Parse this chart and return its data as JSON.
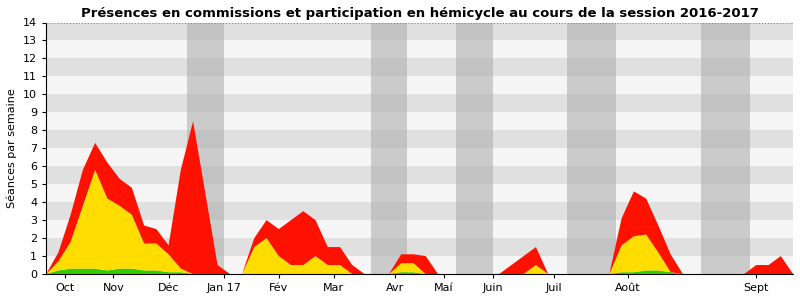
{
  "title": "Présences en commissions et participation en hémicycle au cours de la session 2016-2017",
  "ylabel": "Séances par semaine",
  "ylim": [
    0,
    14
  ],
  "yticks": [
    0,
    1,
    2,
    3,
    4,
    5,
    6,
    7,
    8,
    9,
    10,
    11,
    12,
    13,
    14
  ],
  "stripe_colors": [
    "#f5f5f5",
    "#e0e0e0"
  ],
  "gray_band_color": "#aaaaaa",
  "gray_band_alpha": 0.55,
  "color_green": "#33cc00",
  "color_yellow": "#ffdd00",
  "color_red": "#ff1100",
  "x_labels": [
    "Oct",
    "Nov",
    "Déc",
    "Jan 17",
    "Fév",
    "Mar",
    "Avr",
    "Maí",
    "Juin",
    "Juil",
    "Août",
    "Sept"
  ],
  "gray_bands": [
    {
      "xmin": 11.5,
      "xmax": 14.5
    },
    {
      "xmin": 26.5,
      "xmax": 29.5
    },
    {
      "xmin": 33.5,
      "xmax": 36.5
    },
    {
      "xmin": 42.5,
      "xmax": 46.5
    },
    {
      "xmin": 53.5,
      "xmax": 57.5
    }
  ],
  "month_tick_positions": [
    1.5,
    5.5,
    10.0,
    14.5,
    19.0,
    23.5,
    28.5,
    32.5,
    36.5,
    41.5,
    47.5,
    58.0
  ],
  "n_weeks": 62,
  "green_data": [
    0.0,
    0.2,
    0.3,
    0.3,
    0.3,
    0.2,
    0.3,
    0.3,
    0.2,
    0.2,
    0.1,
    0.1,
    0.0,
    0.0,
    0.0,
    0.0,
    0.0,
    0.0,
    0.0,
    0.0,
    0.0,
    0.0,
    0.0,
    0.0,
    0.0,
    0.0,
    0.0,
    0.0,
    0.0,
    0.1,
    0.1,
    0.0,
    0.0,
    0.0,
    0.0,
    0.0,
    0.0,
    0.0,
    0.0,
    0.0,
    0.0,
    0.0,
    0.0,
    0.0,
    0.0,
    0.0,
    0.0,
    0.1,
    0.1,
    0.2,
    0.2,
    0.1,
    0.0,
    0.0,
    0.0,
    0.0,
    0.0,
    0.0,
    0.0,
    0.0,
    0.0,
    0.0
  ],
  "yellow_data": [
    0.0,
    0.5,
    1.5,
    3.5,
    5.5,
    4.0,
    3.5,
    3.0,
    1.5,
    1.5,
    1.0,
    0.2,
    0.0,
    0.0,
    0.0,
    0.0,
    0.0,
    1.5,
    2.0,
    1.0,
    0.5,
    0.5,
    1.0,
    0.5,
    0.5,
    0.0,
    0.0,
    0.0,
    0.0,
    0.5,
    0.5,
    0.0,
    0.0,
    0.0,
    0.0,
    0.0,
    0.0,
    0.0,
    0.0,
    0.0,
    0.5,
    0.0,
    0.0,
    0.0,
    0.0,
    0.0,
    0.0,
    1.5,
    2.0,
    2.0,
    1.0,
    0.0,
    0.0,
    0.0,
    0.0,
    0.0,
    0.0,
    0.0,
    0.0,
    0.0,
    0.0,
    0.0
  ],
  "red_data": [
    0.0,
    0.5,
    1.5,
    2.0,
    1.5,
    2.0,
    1.5,
    1.5,
    1.0,
    0.8,
    0.5,
    5.5,
    8.5,
    4.5,
    0.5,
    0.0,
    0.0,
    0.5,
    1.0,
    1.5,
    2.5,
    3.0,
    2.0,
    1.0,
    1.0,
    0.5,
    0.0,
    0.0,
    0.0,
    0.5,
    0.5,
    1.0,
    0.0,
    0.0,
    0.0,
    0.0,
    0.0,
    0.0,
    0.5,
    1.0,
    1.0,
    0.0,
    0.0,
    0.0,
    0.0,
    0.0,
    0.0,
    1.5,
    2.5,
    2.0,
    1.5,
    1.0,
    0.0,
    0.0,
    0.0,
    0.0,
    0.0,
    0.0,
    0.5,
    0.5,
    1.0,
    0.0
  ]
}
